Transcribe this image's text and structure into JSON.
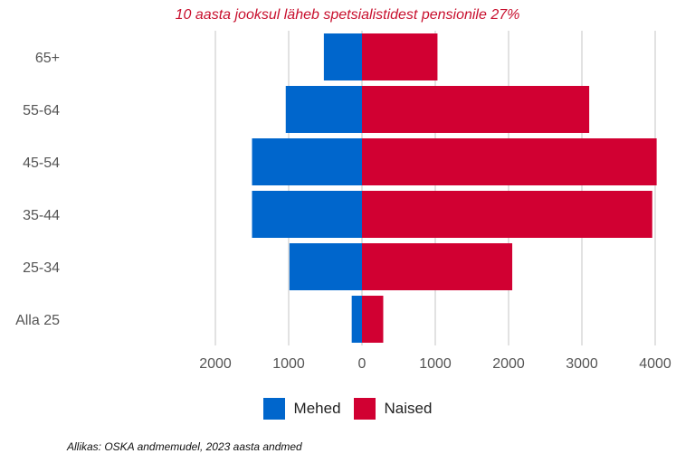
{
  "chart_data": {
    "type": "bar",
    "orientation": "horizontal",
    "layout": "population-pyramid",
    "title": "10 aasta jooksul läheb spetsialistidest pensionile 27%",
    "categories": [
      "65+",
      "55-64",
      "45-54",
      "35-44",
      "25-34",
      "Alla 25"
    ],
    "series": [
      {
        "name": "Mehed",
        "color": "#0066cc",
        "values": [
          -520,
          -1040,
          -1500,
          -1500,
          -990,
          -140
        ]
      },
      {
        "name": "Naised",
        "color": "#d10032",
        "values": [
          1030,
          3100,
          4020,
          3960,
          2050,
          290
        ]
      }
    ],
    "x_ticks": [
      -2000,
      -1000,
      0,
      1000,
      2000,
      3000,
      4000
    ],
    "x_tick_labels": [
      "2000",
      "1000",
      "0",
      "1000",
      "2000",
      "3000",
      "4000"
    ],
    "xlim": [
      -2000,
      4000
    ],
    "grid": "vertical",
    "legend_position": "bottom",
    "source": "Allikas: OSKA andmemudel, 2023 aasta andmed"
  }
}
